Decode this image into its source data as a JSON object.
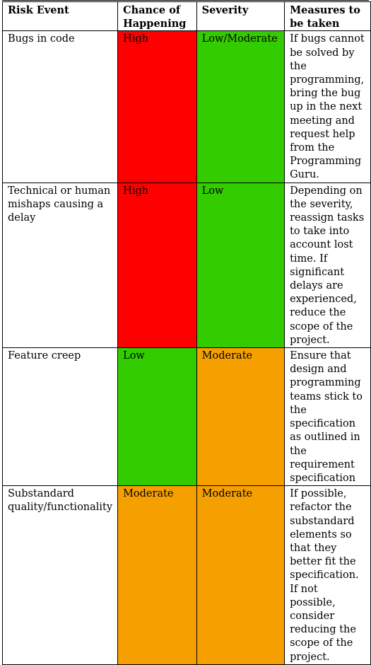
{
  "table": {
    "headers": [
      {
        "text": "Risk Event"
      },
      {
        "text": "Chance of Happening"
      },
      {
        "text": "Severity"
      },
      {
        "text": "Measures to be taken"
      }
    ],
    "rows": [
      {
        "event": "Bugs in code",
        "chance": "High",
        "severity": "Low/Moderate",
        "measures": "If bugs cannot be solved by the programming, bring the bug up in the next meeting and request help from the Programming Guru."
      },
      {
        "event": "Technical or human mishaps causing a delay",
        "chance": "High",
        "severity": "Low",
        "measures": "Depending on the severity, reassign tasks to take into account lost time. If significant delays are experienced, reduce the scope of the project."
      },
      {
        "event": "Feature creep",
        "chance": "Low",
        "severity": "Moderate",
        "measures": "Ensure that design and programming teams stick to the specification as outlined in the requirement specification"
      },
      {
        "event": "Substandard quality/functionality",
        "chance": "Moderate",
        "severity": "Moderate",
        "measures": "If possible, refactor the substandard elements so that they better fit the specification. If not possible, consider reducing the scope of the project."
      }
    ]
  },
  "colors": {
    "High": "#ff0000",
    "Low": "#33cc00",
    "Low/Moderate": "#33cc00",
    "Moderate": "#f5a000"
  }
}
